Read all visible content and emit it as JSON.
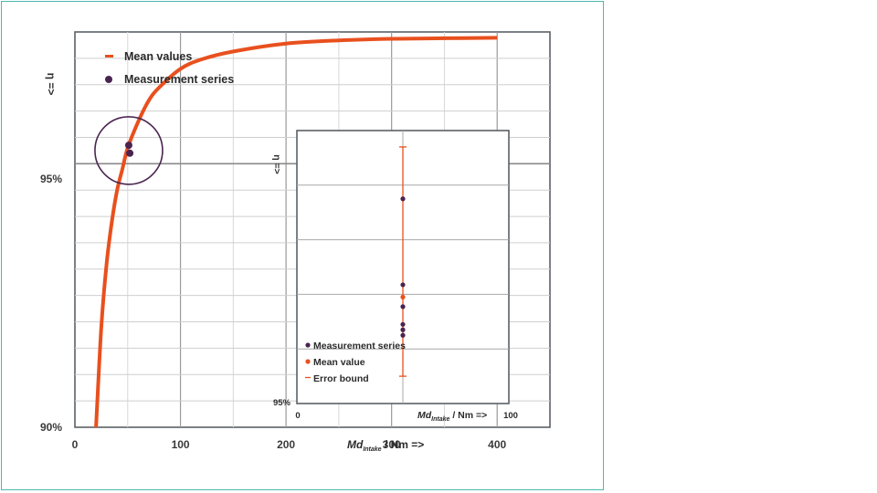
{
  "chart_data": [
    {
      "type": "line",
      "xlim": [
        0,
        450
      ],
      "ylim": [
        90,
        97.5
      ],
      "x_ticks": [
        "0",
        "100",
        "200",
        "300",
        "400"
      ],
      "y_ticks": [
        "90%",
        "95%"
      ],
      "xlabel": {
        "main": "Md",
        "sub": "Intake",
        "rest": " / Nm =>"
      },
      "ylabel": "η =>",
      "grid": true,
      "legend_position": "top-left",
      "legend": [
        "Mean values",
        "Measurement series"
      ],
      "series": [
        {
          "name": "Mean values",
          "color": "#e8501e",
          "x": [
            20,
            25,
            30,
            35,
            40,
            45,
            50,
            60,
            70,
            80,
            100,
            120,
            150,
            200,
            250,
            300,
            350,
            400
          ],
          "y": [
            90.0,
            91.9,
            93.1,
            93.9,
            94.5,
            94.9,
            95.3,
            95.8,
            96.2,
            96.45,
            96.8,
            96.98,
            97.13,
            97.28,
            97.34,
            97.37,
            97.38,
            97.39
          ]
        },
        {
          "name": "Measurement series",
          "color": "#4a2450",
          "x": [
            51,
            52
          ],
          "y": [
            95.35,
            95.2
          ]
        }
      ],
      "annotation": {
        "shape": "circle",
        "center_x": 51,
        "center_y": 95.25,
        "meaning": "highlighted region magnified in inset"
      }
    },
    {
      "type": "scatter",
      "xlim": [
        0,
        100
      ],
      "x_ticks": [
        "0",
        "100"
      ],
      "y_ticks": [
        "95%"
      ],
      "xlabel": {
        "main": "Md",
        "sub": "Intake",
        "rest": " / Nm =>"
      },
      "ylabel": "η =>",
      "grid": true,
      "legend_position": "bottom-left",
      "legend": [
        "Measurement series",
        "Mean value",
        "Error bound"
      ],
      "x_value": 50,
      "measurement_series": [
        0.75,
        0.435,
        0.355,
        0.29,
        0.25,
        0.27
      ],
      "mean_value": 0.39,
      "error_bound": [
        0.1,
        0.94
      ],
      "colors": {
        "measurement": "#4a2450",
        "mean": "#e8501e",
        "error": "#e8501e"
      }
    }
  ]
}
